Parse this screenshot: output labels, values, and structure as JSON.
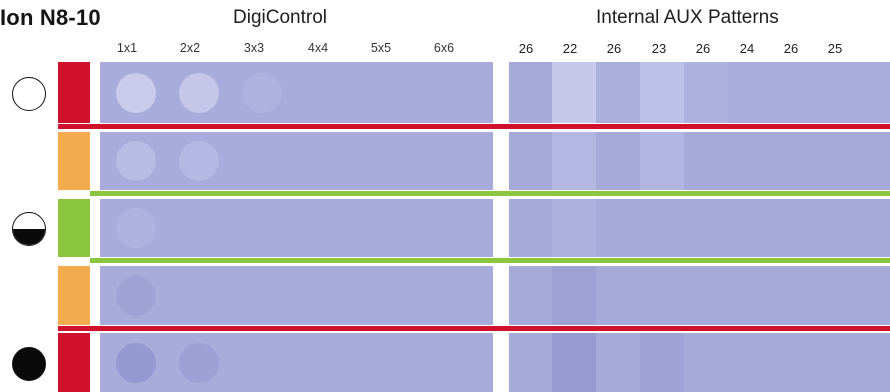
{
  "header": {
    "title": "Ion N8-10",
    "digicontrol_label": "DigiControl",
    "aux_label": "Internal AUX Patterns"
  },
  "digicontrol_columns": [
    "1x1",
    "2x2",
    "3x3",
    "4x4",
    "5x5",
    "6x6"
  ],
  "aux_columns": [
    "26",
    "22",
    "26",
    "23",
    "26",
    "24",
    "26",
    "25"
  ],
  "status_indicators": [
    {
      "name": "empty-circle-icon",
      "fill": "empty"
    },
    {
      "name": "half-filled-circle-icon",
      "fill": "half"
    },
    {
      "name": "filled-circle-icon",
      "fill": "full"
    }
  ],
  "rows": [
    {
      "swatch_color": "#d0112b",
      "separator_below": "#d0112b"
    },
    {
      "swatch_color": "#f3ad4e",
      "separator_below": "#8cc63e"
    },
    {
      "swatch_color": "#8cc63e",
      "separator_below": "#8cc63e"
    },
    {
      "swatch_color": "#f3ad4e",
      "separator_below": "#d0112b"
    },
    {
      "swatch_color": "#d0112b",
      "separator_below": null
    }
  ],
  "colors": {
    "bar_base": "#a8acdb",
    "aux_base": "#a6aad9",
    "red": "#d0112b",
    "green": "#8cc63e",
    "orange": "#f3ad4e"
  }
}
